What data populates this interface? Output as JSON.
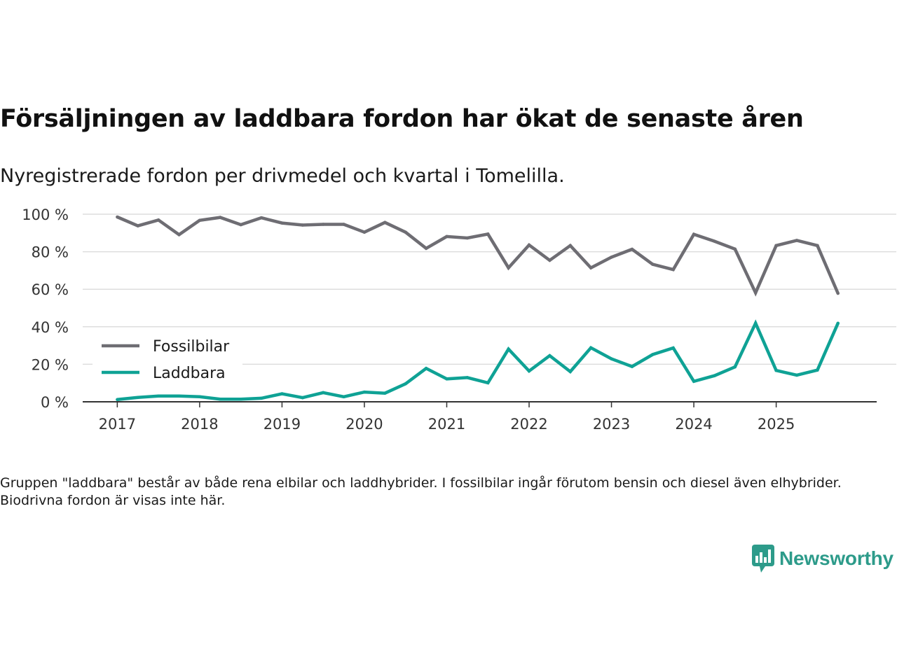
{
  "header": {
    "title": "Försäljningen av laddbara fordon har ökat de senaste åren",
    "subtitle": "Nyregistrerade fordon per drivmedel och kvartal i Tomelilla."
  },
  "footer": {
    "note": "Gruppen \"laddbara\" består av både rena elbilar och laddhybrider. I fossilbilar ingår förutom bensin och diesel även elhybrider. Biodrivna fordon är visas inte här.",
    "brand": "Newsworthy"
  },
  "colors": {
    "brand": "#2d9b8a",
    "grid": "#dddddd",
    "axis": "#333333"
  },
  "chart_data": {
    "type": "line",
    "title": "Försäljningen av laddbara fordon har ökat de senaste åren",
    "subtitle": "Nyregistrerade fordon per drivmedel och kvartal i Tomelilla.",
    "xlabel": "",
    "ylabel": "",
    "x_start": 2017,
    "x_step": 0.25,
    "x_ticks": [
      2017,
      2018,
      2019,
      2020,
      2021,
      2022,
      2023,
      2024,
      2025
    ],
    "y_ticks": [
      0,
      20,
      40,
      60,
      80,
      100
    ],
    "y_tick_suffix": " %",
    "ylim": [
      0,
      100
    ],
    "xlim": [
      2016.58,
      2026.22
    ],
    "grid": true,
    "legend_position": "middle-left",
    "series": [
      {
        "name": "Fossilbilar",
        "color": "#6e6d73",
        "values": [
          98.5,
          93.8,
          96.9,
          89.1,
          96.7,
          98.3,
          94.4,
          98.1,
          95.3,
          94.2,
          94.6,
          94.6,
          90.4,
          95.6,
          90.4,
          81.8,
          88.1,
          87.3,
          89.4,
          71.4,
          83.6,
          75.4,
          83.3,
          71.4,
          77.1,
          81.3,
          73.3,
          70.5,
          89.3,
          85.6,
          81.4,
          58.1,
          83.3,
          86.0,
          83.3,
          57.8
        ]
      },
      {
        "name": "Laddbara",
        "color": "#0fa295",
        "values": [
          1.2,
          2.3,
          3.1,
          3.1,
          2.7,
          1.4,
          1.4,
          1.9,
          4.3,
          2.2,
          4.9,
          2.7,
          5.2,
          4.6,
          9.6,
          17.8,
          12.2,
          12.9,
          10.1,
          28.1,
          16.4,
          24.6,
          16.1,
          28.8,
          22.9,
          18.8,
          25.2,
          28.7,
          10.9,
          13.9,
          18.6,
          41.9,
          16.7,
          14.2,
          16.9,
          41.9
        ]
      }
    ]
  }
}
